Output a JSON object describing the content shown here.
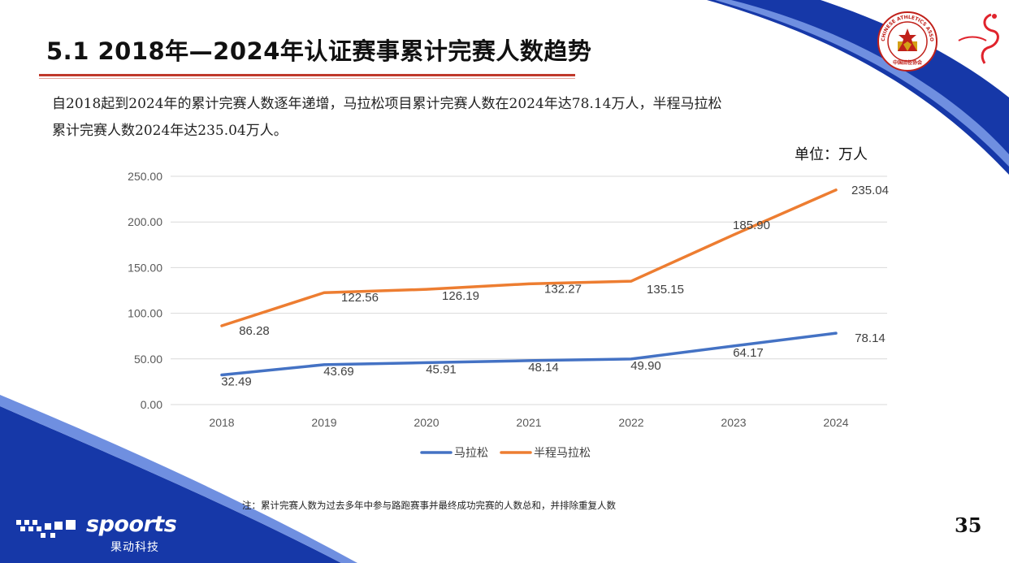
{
  "slide": {
    "title": "5.1 2018年—2024年认证赛事累计完赛人数趋势",
    "description_line1": "自2018起到2024年的累计完赛人数逐年递增，马拉松项目累计完赛人数在2024年达78.14万人，半程马拉松",
    "description_line2": "累计完赛人数2024年达235.04万人。",
    "unit_label": "单位：万人",
    "note": "注：累计完赛人数为过去多年中参与路跑赛事并最终成功完赛的人数总和，并排除重复人数",
    "page_number": "35"
  },
  "branding": {
    "wordmark": "spoorts",
    "subtitle": "果动科技",
    "logo_icon": "chinese-athletics-association-emblem-icon",
    "logo_text": "CHINESE ATHLETICS ASSOCIATION",
    "logo_text_bottom": "中国田径协会"
  },
  "colors": {
    "accent_red": "#c0392b",
    "brand_blue": "#1638a8",
    "marathon_line": "#4472c4",
    "half_marathon_line": "#ed7d31"
  },
  "chart_data": {
    "type": "line",
    "categories": [
      "2018",
      "2019",
      "2020",
      "2021",
      "2022",
      "2023",
      "2024"
    ],
    "series": [
      {
        "name": "马拉松",
        "values": [
          32.49,
          43.69,
          45.91,
          48.14,
          49.9,
          64.17,
          78.14
        ],
        "labels": [
          "32.49",
          "43.69",
          "45.91",
          "48.14",
          "49.90",
          "64.17",
          "78.14"
        ],
        "color": "#4472c4"
      },
      {
        "name": "半程马拉松",
        "values": [
          86.28,
          122.56,
          126.19,
          132.27,
          135.15,
          185.9,
          235.04
        ],
        "labels": [
          "86.28",
          "122.56",
          "126.19",
          "132.27",
          "135.15",
          "185.90",
          "235.04"
        ],
        "color": "#ed7d31"
      }
    ],
    "ylim": [
      0,
      250
    ],
    "yticks": [
      "0.00",
      "50.00",
      "100.00",
      "150.00",
      "200.00",
      "250.00"
    ],
    "grid": true,
    "legend": "bottom-center",
    "xlabel": "",
    "ylabel": ""
  }
}
